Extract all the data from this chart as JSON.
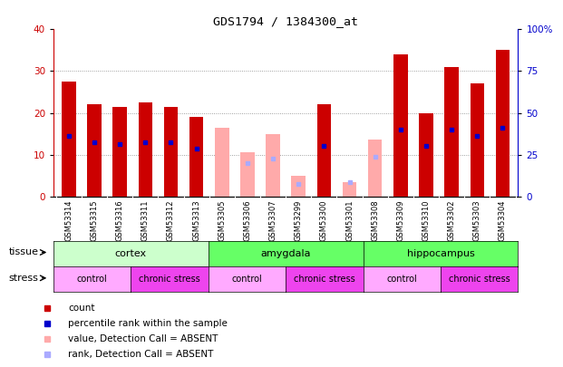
{
  "title": "GDS1794 / 1384300_at",
  "samples": [
    "GSM53314",
    "GSM53315",
    "GSM53316",
    "GSM53311",
    "GSM53312",
    "GSM53313",
    "GSM53305",
    "GSM53306",
    "GSM53307",
    "GSM53299",
    "GSM53300",
    "GSM53301",
    "GSM53308",
    "GSM53309",
    "GSM53310",
    "GSM53302",
    "GSM53303",
    "GSM53304"
  ],
  "red_bars": [
    27.5,
    22,
    21.5,
    22.5,
    21.5,
    19,
    null,
    null,
    null,
    null,
    22,
    null,
    null,
    34,
    20,
    31,
    27,
    35
  ],
  "pink_bars": [
    null,
    null,
    null,
    null,
    null,
    null,
    16.5,
    10.5,
    15,
    5,
    null,
    3.5,
    13.5,
    null,
    null,
    null,
    null,
    null
  ],
  "blue_squares": [
    14.5,
    13,
    12.5,
    13,
    13,
    11.5,
    null,
    null,
    null,
    null,
    12,
    null,
    null,
    16,
    12,
    16,
    14.5,
    16.5
  ],
  "lightblue_squares": [
    null,
    null,
    null,
    null,
    null,
    null,
    null,
    8,
    9,
    3,
    null,
    3.5,
    9.5,
    null,
    null,
    null,
    null,
    null
  ],
  "ylim_left": [
    0,
    40
  ],
  "ylim_right": [
    0,
    100
  ],
  "yticks_left": [
    0,
    10,
    20,
    30,
    40
  ],
  "yticks_right": [
    0,
    25,
    50,
    75,
    100
  ],
  "ytick_labels_right": [
    "0",
    "25",
    "50",
    "75",
    "100%"
  ],
  "tissue_groups": [
    {
      "label": "cortex",
      "start": 0,
      "end": 6,
      "color": "#ccffcc"
    },
    {
      "label": "amygdala",
      "start": 6,
      "end": 12,
      "color": "#66ff66"
    },
    {
      "label": "hippocampus",
      "start": 12,
      "end": 18,
      "color": "#66ff66"
    }
  ],
  "stress_groups": [
    {
      "label": "control",
      "start": 0,
      "end": 3,
      "color": "#ffaaff"
    },
    {
      "label": "chronic stress",
      "start": 3,
      "end": 6,
      "color": "#ee44ee"
    },
    {
      "label": "control",
      "start": 6,
      "end": 9,
      "color": "#ffaaff"
    },
    {
      "label": "chronic stress",
      "start": 9,
      "end": 12,
      "color": "#ee44ee"
    },
    {
      "label": "control",
      "start": 12,
      "end": 15,
      "color": "#ffaaff"
    },
    {
      "label": "chronic stress",
      "start": 15,
      "end": 18,
      "color": "#ee44ee"
    }
  ],
  "red_color": "#cc0000",
  "pink_color": "#ffaaaa",
  "blue_color": "#0000cc",
  "lightblue_color": "#aaaaff",
  "bg_color": "#ffffff",
  "plot_bg_color": "#ffffff",
  "xtick_bg_color": "#dddddd",
  "grid_color": "#888888",
  "bar_width": 0.55,
  "legend_items": [
    {
      "color": "#cc0000",
      "marker": "s",
      "label": "count"
    },
    {
      "color": "#0000cc",
      "marker": "s",
      "label": "percentile rank within the sample"
    },
    {
      "color": "#ffaaaa",
      "marker": "s",
      "label": "value, Detection Call = ABSENT"
    },
    {
      "color": "#aaaaff",
      "marker": "s",
      "label": "rank, Detection Call = ABSENT"
    }
  ]
}
